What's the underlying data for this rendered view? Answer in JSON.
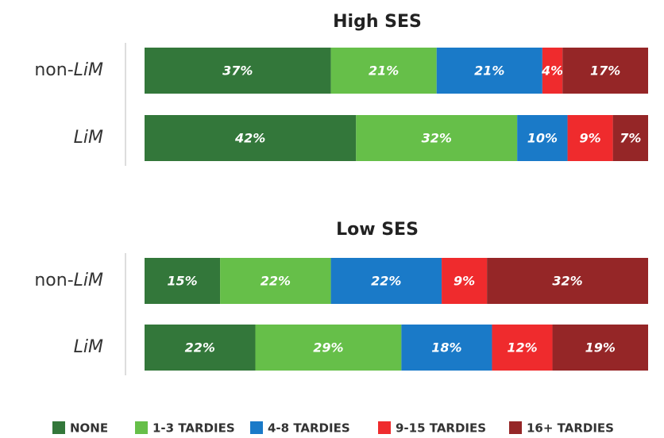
{
  "chart_data": [
    {
      "type": "stacked-bar",
      "title": "High SES",
      "categories": [
        "non-LiM",
        "LiM"
      ],
      "series": [
        {
          "name": "NONE",
          "color": "#33773a",
          "values": [
            37,
            42
          ],
          "value_labels": [
            "37%",
            "42%"
          ]
        },
        {
          "name": "1-3 TARDIES",
          "color": "#66bf49",
          "values": [
            21,
            32
          ],
          "value_labels": [
            "21%",
            "32%"
          ]
        },
        {
          "name": "4-8 TARDIES",
          "color": "#1a7ac8",
          "values": [
            21,
            10
          ],
          "value_labels": [
            "21%",
            "10%"
          ]
        },
        {
          "name": "9-15 TARDIES",
          "color": "#ef2b2d",
          "values": [
            4,
            9
          ],
          "value_labels": [
            "4%",
            "9%"
          ]
        },
        {
          "name": "16+ TARDIES",
          "color": "#952627",
          "values": [
            17,
            7
          ],
          "value_labels": [
            "17%",
            "7%"
          ]
        }
      ]
    },
    {
      "type": "stacked-bar",
      "title": "Low SES",
      "categories": [
        "non-LiM",
        "LiM"
      ],
      "series": [
        {
          "name": "NONE",
          "color": "#33773a",
          "values": [
            15,
            22
          ],
          "value_labels": [
            "15%",
            "22%"
          ]
        },
        {
          "name": "1-3 TARDIES",
          "color": "#66bf49",
          "values": [
            22,
            29
          ],
          "value_labels": [
            "22%",
            "29%"
          ]
        },
        {
          "name": "4-8 TARDIES",
          "color": "#1a7ac8",
          "values": [
            22,
            18
          ],
          "value_labels": [
            "22%",
            "18%"
          ]
        },
        {
          "name": "9-15 TARDIES",
          "color": "#ef2b2d",
          "values": [
            9,
            12
          ],
          "value_labels": [
            "9%",
            "12%"
          ]
        },
        {
          "name": "16+ TARDIES",
          "color": "#952627",
          "values": [
            32,
            19
          ],
          "value_labels": [
            "32%",
            "19%"
          ]
        }
      ]
    }
  ]
}
